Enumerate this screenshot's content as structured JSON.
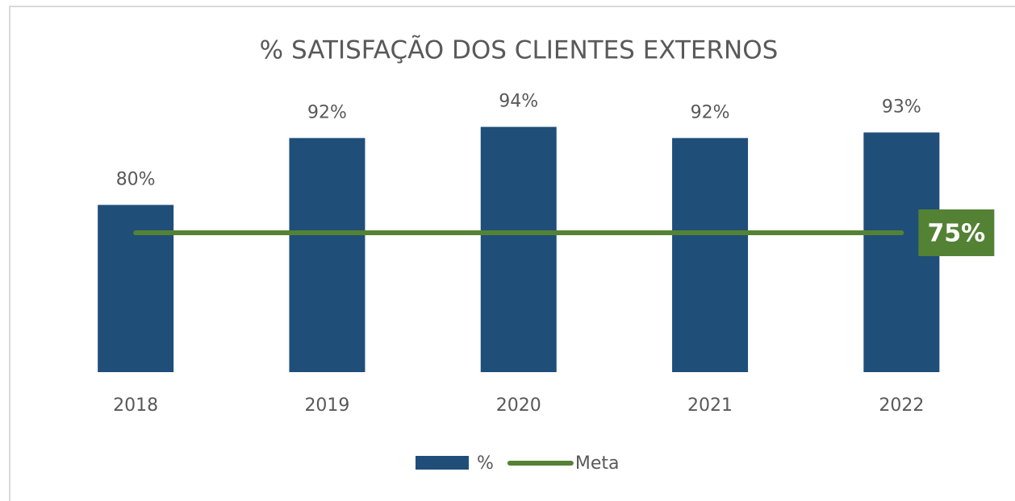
{
  "chart_data": {
    "type": "bar",
    "title": "% SATISFAÇÃO DOS CLIENTES EXTERNOS",
    "categories": [
      "2018",
      "2019",
      "2020",
      "2021",
      "2022"
    ],
    "ylim": [
      50,
      100
    ],
    "series": [
      {
        "name": "%",
        "type": "bar",
        "color": "#1f4e79",
        "values": [
          80,
          92,
          94,
          92,
          93
        ],
        "value_labels": [
          "80%",
          "92%",
          "94%",
          "92%",
          "93%"
        ]
      },
      {
        "name": "Meta",
        "type": "line",
        "color": "#548235",
        "values": [
          75,
          75,
          75,
          75,
          75
        ],
        "value_labels": [
          null,
          null,
          null,
          null,
          "75%"
        ]
      }
    ],
    "legend": "bottom"
  }
}
